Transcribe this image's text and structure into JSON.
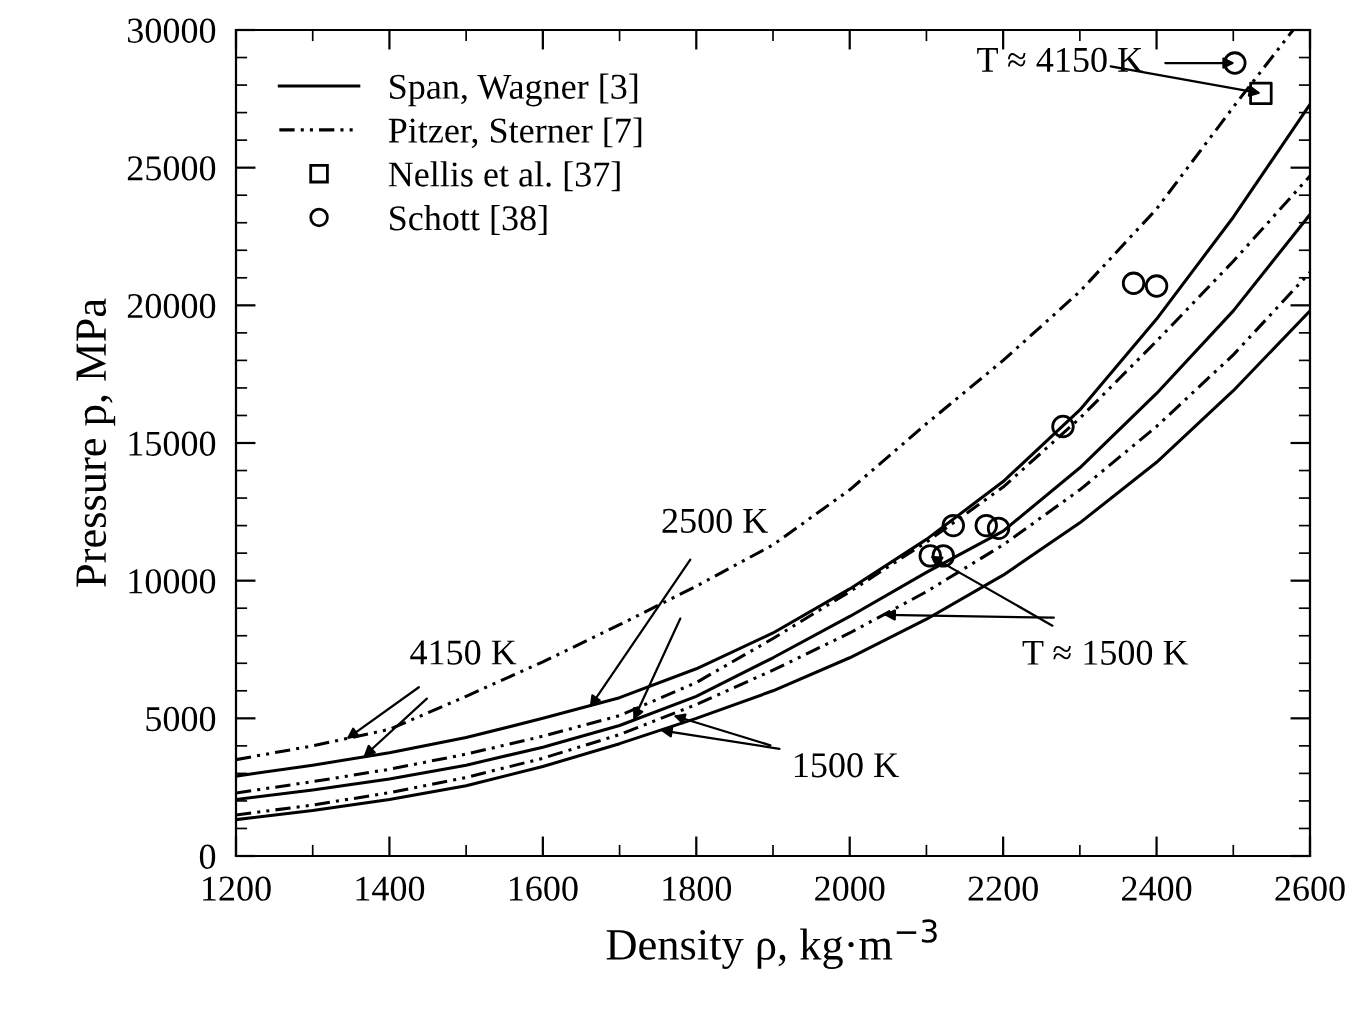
{
  "chart_data": {
    "type": "line",
    "xlabel": "Density ρ, kg·m$^{−3}$",
    "ylabel": "Pressure p, MPa",
    "x": [
      1200,
      1300,
      1400,
      1500,
      1600,
      1700,
      1800,
      1900,
      2000,
      2100,
      2200,
      2300,
      2400,
      2500,
      2600
    ],
    "series": [
      {
        "name": "Span, Wagner [3]",
        "color": "#000000",
        "line_style": "solid",
        "values": [
          2900,
          3300,
          3750,
          4300,
          5000,
          5750,
          6800,
          8100,
          9700,
          11500,
          13600,
          16200,
          19500,
          23200,
          27300
        ]
      },
      {
        "color": "#000000",
        "line_style": "solid",
        "values": [
          2050,
          2400,
          2800,
          3300,
          3950,
          4740,
          5800,
          7200,
          8700,
          10300,
          11800,
          14100,
          16800,
          19800,
          23300
        ]
      },
      {
        "color": "#000000",
        "line_style": "solid",
        "values": [
          1320,
          1650,
          2050,
          2550,
          3250,
          4080,
          5000,
          6000,
          7200,
          8600,
          10200,
          12100,
          14300,
          16900,
          19800
        ]
      },
      {
        "name": "Pitzer, Sterner [7]",
        "color": "#000000",
        "line_style": "dashdot",
        "x": [
          1200,
          1300,
          1400,
          1500,
          1600,
          1700,
          1800,
          1900,
          2000,
          2100,
          2200,
          2300,
          2400,
          2500,
          2578
        ],
        "values": [
          3500,
          4000,
          4600,
          5800,
          7050,
          8400,
          9800,
          11300,
          13300,
          15700,
          18000,
          20500,
          23500,
          27200,
          30000
        ]
      },
      {
        "color": "#000000",
        "line_style": "dashdot",
        "values": [
          2290,
          2700,
          3150,
          3700,
          4350,
          5100,
          6300,
          7900,
          9600,
          11400,
          13400,
          15900,
          18700,
          21600,
          24700
        ]
      },
      {
        "color": "#000000",
        "line_style": "dashdot",
        "values": [
          1490,
          1850,
          2300,
          2850,
          3550,
          4410,
          5500,
          6750,
          8100,
          9600,
          11300,
          13300,
          15600,
          18200,
          21200
        ]
      },
      {
        "name": "Nellis et al. [37]",
        "type": "scatter",
        "marker": "square",
        "color": "#000000",
        "x": [
          2536
        ],
        "values": [
          27700
        ]
      },
      {
        "name": "Schott [38]",
        "type": "scatter",
        "marker": "circle",
        "color": "#000000",
        "x": [
          2105,
          2122,
          2135,
          2178,
          2194,
          2278,
          2370,
          2400,
          2502
        ],
        "values": [
          10900,
          10900,
          12000,
          12000,
          11900,
          15600,
          20800,
          20700,
          28800
        ]
      }
    ],
    "annotations": [
      {
        "text": "4150 K",
        "x": 1344,
        "y": 4250
      },
      {
        "text": "2500 K",
        "x": 1661,
        "y": 5400
      },
      {
        "text": "1500 K",
        "x": 1770,
        "y": 5100
      },
      {
        "text": "T ≈ 1500 K",
        "x": 2105,
        "y": 10900
      },
      {
        "text": "T ≈ 4150 K",
        "x": 2502,
        "y": 28800
      }
    ],
    "xlim": [
      1200,
      2600
    ],
    "ylim": [
      0,
      30000
    ],
    "xticks": [
      1200,
      {
        "value": 1300,
        "label": null
      },
      1400,
      {
        "value": 1500,
        "label": null
      },
      1600,
      {
        "value": 1700,
        "label": null
      },
      1800,
      {
        "value": 1900,
        "label": null
      },
      2000,
      {
        "value": 2100,
        "label": null
      },
      2200,
      {
        "value": 2300,
        "label": null
      },
      2400,
      {
        "value": 2500,
        "label": null
      },
      2600
    ],
    "yticks": [
      0,
      {
        "value": 1000,
        "label": null
      },
      {
        "value": 2000,
        "label": null
      },
      {
        "value": 3000,
        "label": null
      },
      {
        "value": 4000,
        "label": null
      },
      5000,
      {
        "value": 6000,
        "label": null
      },
      {
        "value": 7000,
        "label": null
      },
      {
        "value": 8000,
        "label": null
      },
      {
        "value": 9000,
        "label": null
      },
      10000,
      {
        "value": 11000,
        "label": null
      },
      {
        "value": 12000,
        "label": null
      },
      {
        "value": 13000,
        "label": null
      },
      {
        "value": 14000,
        "label": null
      },
      15000,
      {
        "value": 16000,
        "label": null
      },
      {
        "value": 17000,
        "label": null
      },
      {
        "value": 18000,
        "label": null
      },
      {
        "value": 19000,
        "label": null
      },
      20000,
      {
        "value": 21000,
        "label": null
      },
      {
        "value": 22000,
        "label": null
      },
      {
        "value": 23000,
        "label": null
      },
      {
        "value": 24000,
        "label": null
      },
      25000,
      {
        "value": 26000,
        "label": null
      },
      {
        "value": 27000,
        "label": null
      },
      {
        "value": 28000,
        "label": null
      },
      {
        "value": 29000,
        "label": null
      },
      30000
    ],
    "grid": false,
    "legend": "top left"
  }
}
